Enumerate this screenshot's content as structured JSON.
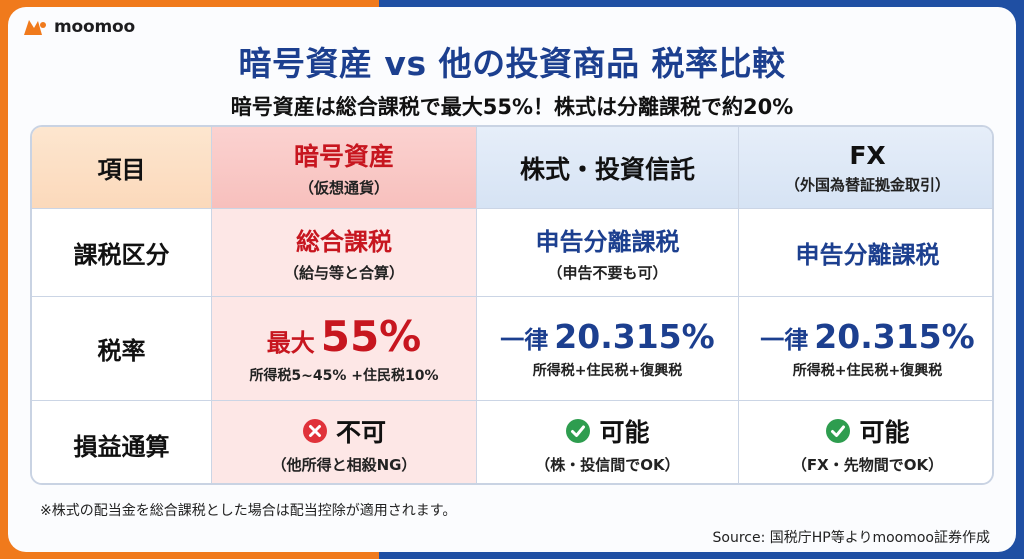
{
  "brand": {
    "name": "moomoo"
  },
  "title": "暗号資産 vs 他の投資商品 税率比較",
  "subtitle": "暗号資産は総合課税で最大55%！株式は分離課税で約20%",
  "table": {
    "headers": {
      "item": "項目",
      "crypto": {
        "main": "暗号資産",
        "sub": "（仮想通貨）"
      },
      "stocks": {
        "main": "株式・投資信託"
      },
      "fx": {
        "main": "FX",
        "sub": "（外国為替証拠金取引）"
      }
    },
    "rows": {
      "tax_category": {
        "label": "課税区分",
        "crypto": {
          "main": "総合課税",
          "sub": "（給与等と合算）"
        },
        "stocks": {
          "main": "申告分離課税",
          "sub": "（申告不要も可）"
        },
        "fx": {
          "main": "申告分離課税"
        }
      },
      "tax_rate": {
        "label": "税率",
        "crypto": {
          "prefix": "最大",
          "value": "55%",
          "sub": "所得税5~45% +住民税10%"
        },
        "stocks": {
          "prefix": "一律",
          "value": "20.315%",
          "sub": "所得税+住民税+復興税"
        },
        "fx": {
          "prefix": "一律",
          "value": "20.315%",
          "sub": "所得税+住民税+復興税"
        }
      },
      "loss_offset": {
        "label": "損益通算",
        "crypto": {
          "main": "不可",
          "sub": "（他所得と相殺NG）",
          "icon": "cross-circle-icon"
        },
        "stocks": {
          "main": "可能",
          "sub": "（株・投信間でOK）",
          "icon": "check-circle-icon"
        },
        "fx": {
          "main": "可能",
          "sub": "（FX・先物間でOK）",
          "icon": "check-circle-icon"
        }
      }
    }
  },
  "note": "※株式の配当金を総合課税とした場合は配当控除が適用されます。",
  "source": "Source: 国税庁HP等よりmoomoo証券作成",
  "colors": {
    "orange": "#f07a1c",
    "navy": "#1c3f8f",
    "red": "#c7161f",
    "green": "#2e9d4f"
  }
}
